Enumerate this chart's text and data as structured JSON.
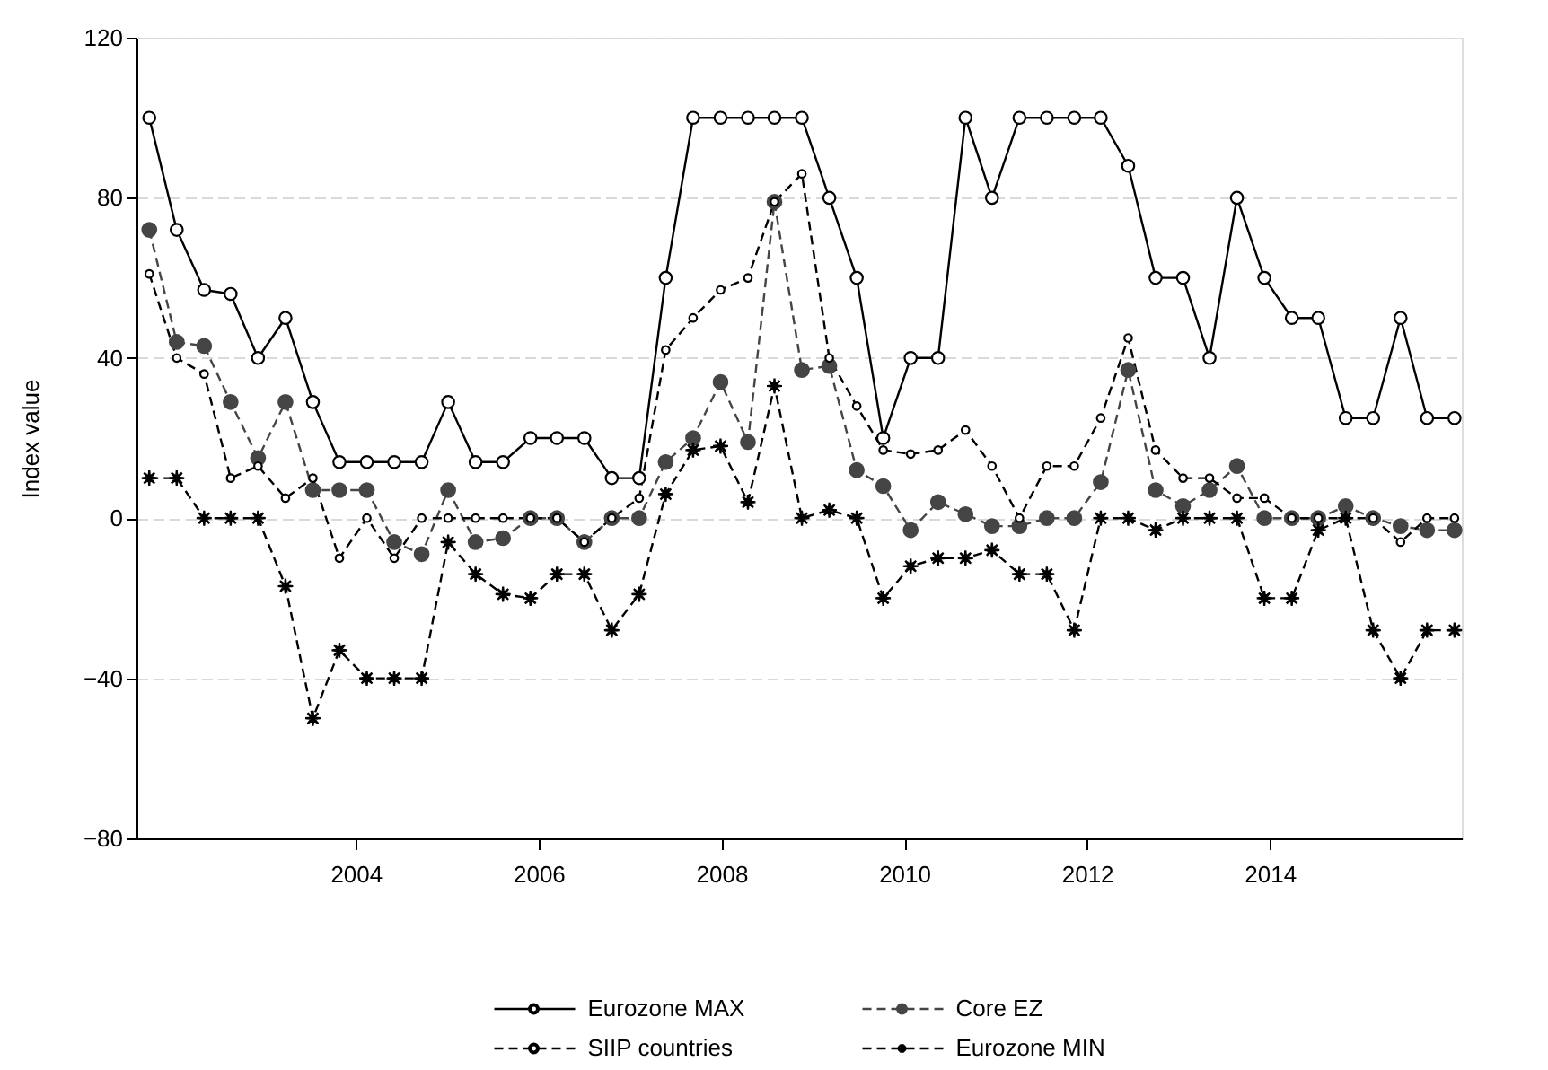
{
  "chart_data": {
    "type": "line",
    "ylabel": "Index value",
    "x": [
      2001.74,
      2002.04,
      2002.34,
      2002.63,
      2002.93,
      2003.23,
      2003.53,
      2003.82,
      2004.12,
      2004.42,
      2004.72,
      2005.01,
      2005.31,
      2005.61,
      2005.91,
      2006.2,
      2006.5,
      2006.8,
      2007.1,
      2007.39,
      2007.69,
      2007.99,
      2008.29,
      2008.58,
      2008.88,
      2009.18,
      2009.48,
      2009.77,
      2010.07,
      2010.37,
      2010.67,
      2010.96,
      2011.26,
      2011.56,
      2011.86,
      2012.15,
      2012.45,
      2012.75,
      2013.05,
      2013.34,
      2013.64,
      2013.94,
      2014.24,
      2014.53,
      2014.83,
      2015.13,
      2015.43,
      2015.72,
      2016.02
    ],
    "series": [
      {
        "name": "Eurozone MAX",
        "color": "#000000",
        "line_style": "solid",
        "marker": "circle",
        "values": [
          100,
          72,
          57,
          56,
          40,
          50,
          29,
          14,
          14,
          14,
          14,
          29,
          14,
          14,
          20,
          20,
          20,
          10,
          10,
          60,
          100,
          100,
          100,
          100,
          100,
          80,
          60,
          20,
          40,
          40,
          100,
          80,
          100,
          100,
          100,
          100,
          88,
          60,
          60,
          40,
          80,
          60,
          50,
          50,
          25,
          25,
          50,
          25,
          25
        ]
      },
      {
        "name": "Core EZ",
        "color": "#454545",
        "line_style": "dashed",
        "marker": "circle",
        "values": [
          72,
          44,
          43,
          29,
          15,
          29,
          7,
          7,
          7,
          -6,
          -9,
          7,
          -6,
          -5,
          0,
          0,
          -6,
          0,
          0,
          14,
          20,
          34,
          19,
          79,
          37,
          38,
          12,
          8,
          -3,
          4,
          1,
          -2,
          -2,
          0,
          0,
          9,
          37,
          7,
          3,
          7,
          13,
          0,
          0,
          0,
          3,
          0,
          -2,
          -3,
          -3
        ]
      },
      {
        "name": "SIIP countries",
        "color": "#000000",
        "line_style": "dashed",
        "marker": "circle",
        "values": [
          61,
          40,
          36,
          10,
          13,
          5,
          10,
          -10,
          0,
          -10,
          0,
          0,
          0,
          0,
          0,
          0,
          -6,
          0,
          5,
          42,
          50,
          57,
          60,
          79,
          86,
          40,
          28,
          17,
          16,
          17,
          22,
          13,
          0,
          13,
          13,
          25,
          45,
          17,
          10,
          10,
          5,
          5,
          0,
          0,
          0,
          0,
          -6,
          0,
          0
        ]
      },
      {
        "name": "Eurozone MIN",
        "color": "#000000",
        "line_style": "dashed",
        "marker": "star",
        "values": [
          10,
          10,
          0,
          0,
          0,
          -17,
          -50,
          -33,
          -40,
          -40,
          -40,
          -6,
          -14,
          -19,
          -20,
          -14,
          -14,
          -28,
          -19,
          6,
          17,
          18,
          4,
          33,
          0,
          2,
          0,
          -20,
          -12,
          -10,
          -10,
          -8,
          -14,
          -14,
          -28,
          0,
          0,
          -3,
          0,
          0,
          0,
          -20,
          -20,
          -3,
          0,
          -28,
          -40,
          -28,
          -28
        ]
      }
    ],
    "xlim": [
      2001.6,
      2016.1
    ],
    "xticks": [
      2004,
      2006,
      2008,
      2010,
      2012,
      2014
    ],
    "ylim": [
      -80,
      120
    ],
    "yticks": [
      -80,
      -40,
      0,
      40,
      80,
      120
    ],
    "grid": "y",
    "legend": "bottom"
  }
}
